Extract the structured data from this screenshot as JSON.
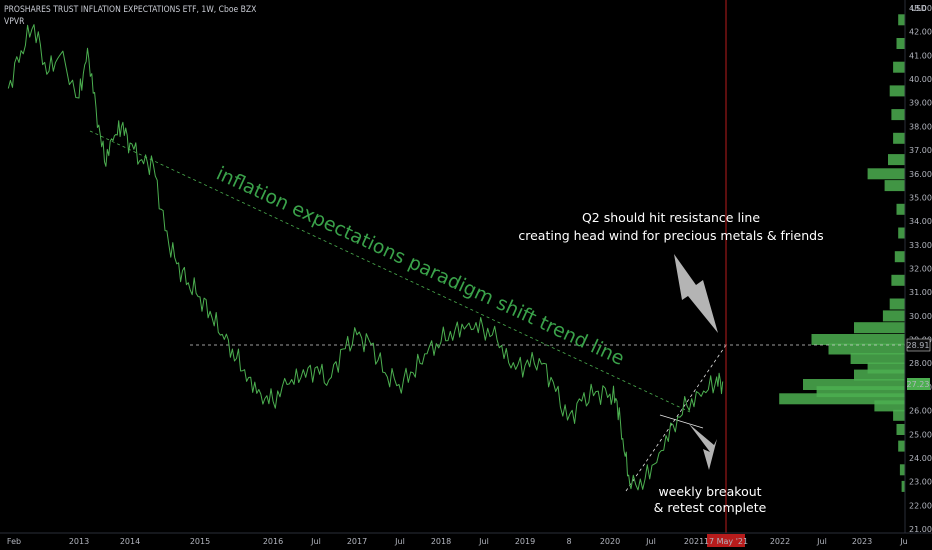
{
  "header": {
    "title": "PROSHARES TRUST INFLATION EXPECTATIONS ETF, 1W, Cboe BZX",
    "indicator": "VPVR",
    "currency": "USD"
  },
  "chart_data": {
    "type": "line",
    "y_range": [
      21,
      43
    ],
    "y_ticks": [
      "21.00",
      "22.00",
      "23.00",
      "24.00",
      "25.00",
      "26.00",
      "27.00",
      "28.00",
      "29.00",
      "30.00",
      "31.00",
      "32.00",
      "33.00",
      "34.00",
      "35.00",
      "36.00",
      "37.00",
      "38.00",
      "39.00",
      "40.00",
      "41.00",
      "42.00",
      "43.00"
    ],
    "x_ticks": [
      "Feb",
      "2013",
      "2014",
      "2015",
      "2016",
      "Jul",
      "2017",
      "Jul",
      "2018",
      "Jul",
      "2019",
      "8",
      "2020",
      "Jul",
      "2021",
      "17 May '21",
      "2022",
      "Jul",
      "2023",
      "Ju"
    ],
    "price_label": "27.23",
    "level_label": "28.91",
    "date_marker": "17 May '21",
    "colors": {
      "line": "#4caf50",
      "trend": "#4caf50",
      "marker": "#b71c1c",
      "volume": "#4caf50",
      "text": "#ffffff"
    },
    "series": [
      {
        "x": [
          "2012-02",
          "2012-04",
          "2012-06",
          "2012-08",
          "2012-10",
          "2013-01",
          "2013-03",
          "2013-05",
          "2013-07",
          "2013-09",
          "2013-11",
          "2014-01",
          "2014-03",
          "2014-05",
          "2014-07",
          "2014-09",
          "2014-11",
          "2015-01",
          "2015-03",
          "2015-05",
          "2015-07",
          "2015-09",
          "2015-11",
          "2016-01",
          "2016-03",
          "2016-05",
          "2016-07",
          "2016-09",
          "2016-11",
          "2017-01",
          "2017-03",
          "2017-05",
          "2017-07",
          "2017-09",
          "2017-11",
          "2018-01",
          "2018-03",
          "2018-05",
          "2018-07",
          "2018-09",
          "2018-11",
          "2019-01",
          "2019-03",
          "2019-05",
          "2019-07",
          "2019-09",
          "2019-11",
          "2020-01",
          "2020-02",
          "2020-03",
          "2020-04",
          "2020-06",
          "2020-08",
          "2020-10",
          "2020-12",
          "2021-02",
          "2021-04",
          "2021-05"
        ],
        "values": [
          39.6,
          41.2,
          42.3,
          40.2,
          41.0,
          39.2,
          41.3,
          38.8,
          36.5,
          37.4,
          38.0,
          37.3,
          36.6,
          36.4,
          33.6,
          32.2,
          31.4,
          30.8,
          29.9,
          29.0,
          28.2,
          27.4,
          26.7,
          26.4,
          27.1,
          27.4,
          27.8,
          27.3,
          28.6,
          29.2,
          28.8,
          27.6,
          27.1,
          27.6,
          28.4,
          28.9,
          29.4,
          29.7,
          29.5,
          29.0,
          27.8,
          27.9,
          28.2,
          27.2,
          25.6,
          26.4,
          26.8,
          26.7,
          26.4,
          24.3,
          22.7,
          23.1,
          24.2,
          25.4,
          26.2,
          26.6,
          27.2,
          27.23
        ]
      }
    ],
    "annotations": [
      {
        "text": "inflation expectations paradigm shift trend line"
      },
      {
        "text": "Q2 should hit resistance line"
      },
      {
        "text": "creating head wind for precious metals & friends"
      },
      {
        "text": "weekly breakout"
      },
      {
        "text": "& retest complete"
      }
    ],
    "volume_profile": [
      {
        "price": 42.5,
        "vol": 0.04
      },
      {
        "price": 41.5,
        "vol": 0.05
      },
      {
        "price": 40.5,
        "vol": 0.07
      },
      {
        "price": 39.5,
        "vol": 0.09
      },
      {
        "price": 38.5,
        "vol": 0.08
      },
      {
        "price": 37.5,
        "vol": 0.07
      },
      {
        "price": 36.6,
        "vol": 0.1
      },
      {
        "price": 36.0,
        "vol": 0.22
      },
      {
        "price": 35.5,
        "vol": 0.12
      },
      {
        "price": 34.5,
        "vol": 0.05
      },
      {
        "price": 33.5,
        "vol": 0.04
      },
      {
        "price": 32.5,
        "vol": 0.06
      },
      {
        "price": 31.5,
        "vol": 0.08
      },
      {
        "price": 30.5,
        "vol": 0.09
      },
      {
        "price": 30.0,
        "vol": 0.13
      },
      {
        "price": 29.5,
        "vol": 0.3
      },
      {
        "price": 29.0,
        "vol": 0.55
      },
      {
        "price": 28.6,
        "vol": 0.45
      },
      {
        "price": 28.2,
        "vol": 0.32
      },
      {
        "price": 27.8,
        "vol": 0.22
      },
      {
        "price": 27.5,
        "vol": 0.3
      },
      {
        "price": 27.1,
        "vol": 0.6
      },
      {
        "price": 26.8,
        "vol": 0.52
      },
      {
        "price": 26.5,
        "vol": 0.74
      },
      {
        "price": 26.2,
        "vol": 0.18
      },
      {
        "price": 25.8,
        "vol": 0.07
      },
      {
        "price": 25.2,
        "vol": 0.05
      },
      {
        "price": 24.5,
        "vol": 0.04
      },
      {
        "price": 23.5,
        "vol": 0.03
      },
      {
        "price": 22.8,
        "vol": 0.02
      }
    ]
  }
}
